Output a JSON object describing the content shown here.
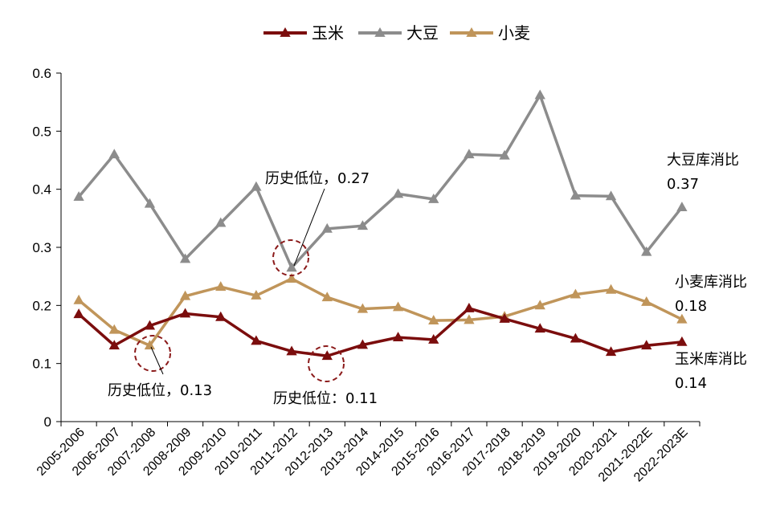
{
  "chart_data": {
    "type": "line",
    "title": "",
    "xlabel": "",
    "ylabel": "",
    "ylim": [
      0,
      0.6
    ],
    "yticks": [
      "0",
      "0.1",
      "0.2",
      "0.3",
      "0.4",
      "0.5",
      "0.6"
    ],
    "categories": [
      "2005-2006",
      "2006-2007",
      "2007-2008",
      "2008-2009",
      "2009-2010",
      "2010-2011",
      "2011-2012",
      "2012-2013",
      "2013-2014",
      "2014-2015",
      "2015-2016",
      "2016-2017",
      "2017-2018",
      "2018-2019",
      "2019-2020",
      "2020-2021",
      "2021-2022E",
      "2022-2023E"
    ],
    "legend_position": "top-center",
    "grid": false,
    "series": [
      {
        "name": "玉米",
        "color": "#7B0D0D",
        "values": [
          0.185,
          0.131,
          0.165,
          0.186,
          0.18,
          0.139,
          0.121,
          0.113,
          0.132,
          0.145,
          0.141,
          0.195,
          0.177,
          0.16,
          0.143,
          0.12,
          0.131,
          0.137
        ]
      },
      {
        "name": "大豆",
        "color": "#8C8C8C",
        "values": [
          0.387,
          0.46,
          0.375,
          0.28,
          0.342,
          0.404,
          0.265,
          0.332,
          0.337,
          0.392,
          0.383,
          0.46,
          0.458,
          0.562,
          0.389,
          0.388,
          0.292,
          0.369
        ]
      },
      {
        "name": "小麦",
        "color": "#C0955A",
        "values": [
          0.209,
          0.158,
          0.131,
          0.216,
          0.232,
          0.217,
          0.246,
          0.214,
          0.194,
          0.197,
          0.174,
          0.175,
          0.181,
          0.2,
          0.219,
          0.227,
          0.206,
          0.176
        ]
      }
    ],
    "annotations": [
      {
        "text": "历史低位，0.27"
      },
      {
        "text": "历史低位，0.13"
      },
      {
        "text": "历史低位：0.11"
      },
      {
        "text": "大豆库消比"
      },
      {
        "text": "0.37"
      },
      {
        "text": "小麦库消比"
      },
      {
        "text": "0.18"
      },
      {
        "text": "玉米库消比"
      },
      {
        "text": "0.14"
      }
    ]
  }
}
